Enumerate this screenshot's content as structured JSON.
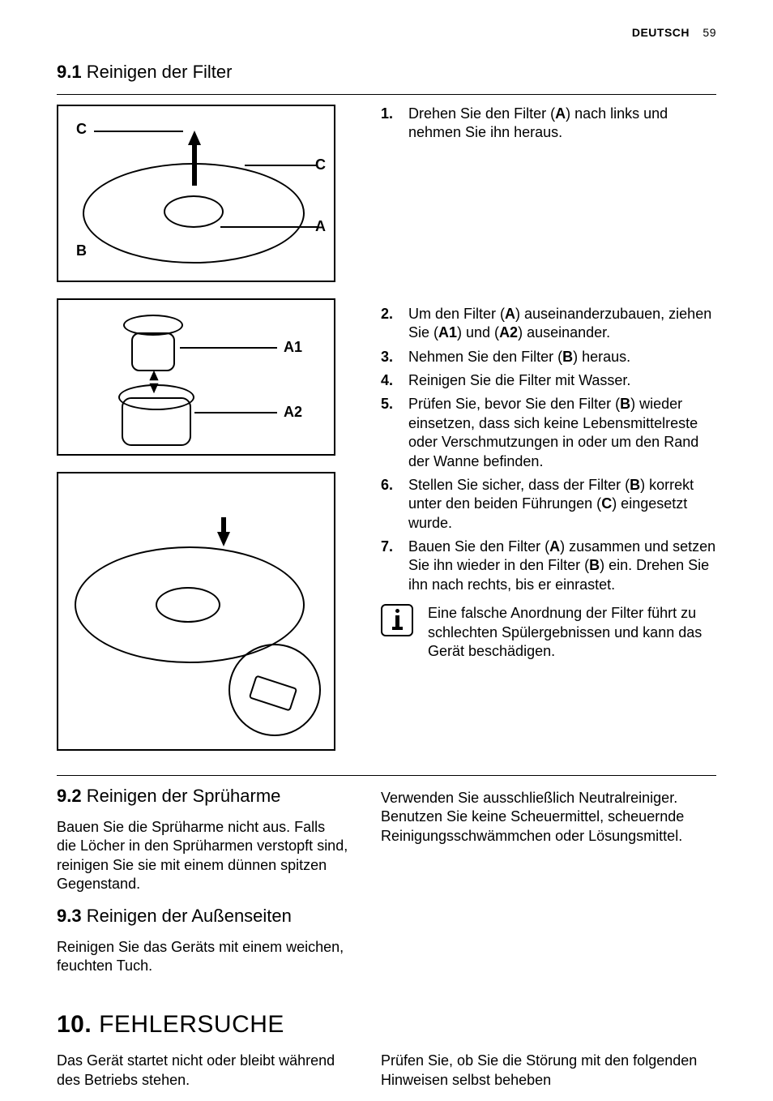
{
  "header": {
    "language": "DEUTSCH",
    "page_number": "59"
  },
  "section_9_1": {
    "number": "9.1",
    "title": "Reinigen der Filter"
  },
  "fig1_labels": {
    "C_top": "C",
    "C_right": "C",
    "A": "A",
    "B": "B"
  },
  "fig2_labels": {
    "A1": "A1",
    "A2": "A2"
  },
  "steps": [
    {
      "n": "1.",
      "html": "Drehen Sie den Filter (<b>A</b>) nach links und nehmen Sie ihn heraus."
    },
    {
      "n": "2.",
      "html": "Um den Filter (<b>A</b>) auseinanderzubauen, ziehen Sie (<b>A1</b>) und (<b>A2</b>) auseinander."
    },
    {
      "n": "3.",
      "html": "Nehmen Sie den Filter (<b>B</b>) heraus."
    },
    {
      "n": "4.",
      "html": "Reinigen Sie die Filter mit Wasser."
    },
    {
      "n": "5.",
      "html": "Prüfen Sie, bevor Sie den Filter (<b>B</b>) wieder einsetzen, dass sich keine Lebensmittelreste oder Verschmutzungen in oder um den Rand der Wanne befinden."
    },
    {
      "n": "6.",
      "html": "Stellen Sie sicher, dass der Filter (<b>B</b>) korrekt unter den beiden Führungen (<b>C</b>) eingesetzt wurde."
    },
    {
      "n": "7.",
      "html": "Bauen Sie den Filter (<b>A</b>) zusammen und setzen Sie ihn wieder in den Filter (<b>B</b>) ein. Drehen Sie ihn nach rechts, bis er einrastet."
    }
  ],
  "info_note": "Eine falsche Anordnung der Filter führt zu schlechten Spülergebnissen und kann das Gerät beschädigen.",
  "section_9_2": {
    "number": "9.2",
    "title": "Reinigen der Sprüharme",
    "body": "Bauen Sie die Sprüharme nicht aus. Falls die Löcher in den Sprüharmen verstopft sind, reinigen Sie sie mit einem dünnen spitzen Gegenstand."
  },
  "section_9_3": {
    "number": "9.3",
    "title": "Reinigen der Außenseiten",
    "body_left": "Reinigen Sie das Geräts mit einem weichen, feuchten Tuch.",
    "body_right": "Verwenden Sie ausschließlich Neutralreiniger. Benutzen Sie keine Scheuermittel, scheuernde Reinigungsschwämmchen oder Lösungsmittel."
  },
  "section_10": {
    "number": "10.",
    "title": "FEHLERSUCHE",
    "body_left": "Das Gerät startet nicht oder bleibt während des Betriebs stehen.",
    "body_right": "Prüfen Sie, ob Sie die Störung mit den folgenden Hinweisen selbst beheben"
  }
}
